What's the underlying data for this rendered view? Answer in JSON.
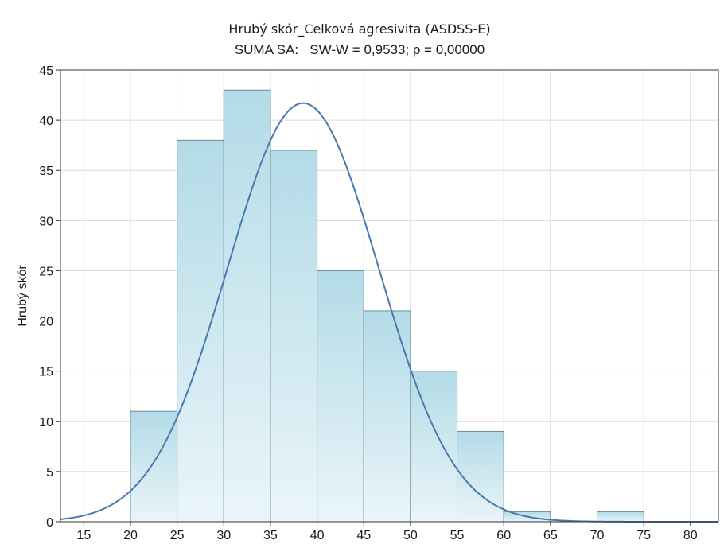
{
  "chart_data": {
    "type": "bar",
    "title": "Hrubý skór_Celková agresivita (ASDSS-E)",
    "subtitle": "SUMA SA:   SW-W = 0,9533; p = 0,00000",
    "xlabel": "",
    "ylabel": "Hrubý skór",
    "bins": [
      {
        "from": 20,
        "to": 25,
        "count": 11
      },
      {
        "from": 25,
        "to": 30,
        "count": 38
      },
      {
        "from": 30,
        "to": 35,
        "count": 43
      },
      {
        "from": 35,
        "to": 40,
        "count": 37
      },
      {
        "from": 40,
        "to": 45,
        "count": 25
      },
      {
        "from": 45,
        "to": 50,
        "count": 21
      },
      {
        "from": 50,
        "to": 55,
        "count": 15
      },
      {
        "from": 55,
        "to": 60,
        "count": 9
      },
      {
        "from": 60,
        "to": 65,
        "count": 1
      },
      {
        "from": 65,
        "to": 70,
        "count": 0
      },
      {
        "from": 70,
        "to": 75,
        "count": 1
      }
    ],
    "xlim": [
      12.5,
      83
    ],
    "ylim": [
      0,
      45
    ],
    "x_ticks": [
      15,
      20,
      25,
      30,
      35,
      40,
      45,
      50,
      55,
      60,
      65,
      70,
      75,
      80
    ],
    "y_ticks": [
      0,
      5,
      10,
      15,
      20,
      25,
      30,
      35,
      40,
      45
    ],
    "grid": true,
    "normal_curve": {
      "mean": 38.5,
      "sd": 8.1,
      "peak": 41.7
    },
    "colors": {
      "bar_top": "#b3dbe7",
      "bar_bottom": "#eaf5f9",
      "bar_edge": "#6a8d99",
      "curve": "#4a78b0",
      "grid": "#d9d9d9",
      "axis": "#333333"
    }
  }
}
